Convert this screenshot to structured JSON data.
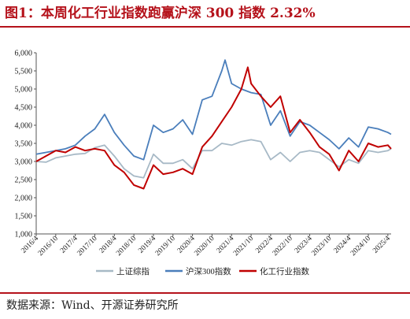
{
  "title": "图1：本周化工行业指数跑赢沪深 300 指数 2.32%",
  "source": "数据来源：Wind、开源证券研究所",
  "colors": {
    "accent": "#b5121b"
  },
  "chart_data": {
    "type": "line",
    "ylim": [
      1000,
      6000
    ],
    "yticks": [
      "1,000",
      "1,500",
      "2,000",
      "2,500",
      "3,000",
      "3,500",
      "4,000",
      "4,500",
      "5,000",
      "5,500",
      "6,000"
    ],
    "xlim": [
      "2016-04",
      "2025-05"
    ],
    "xticks": [
      "2016/4",
      "2016/10",
      "2017/4",
      "2017/10",
      "2018/4",
      "2018/10",
      "2019/4",
      "2019/10",
      "2020/4",
      "2020/10",
      "2021/4",
      "2021/10",
      "2022/4",
      "2022/10",
      "2023/4",
      "2023/10",
      "2024/4",
      "2024/10",
      "2025/4"
    ],
    "grid": false,
    "legend_position": "bottom",
    "series": [
      {
        "name": "上证综指",
        "color": "#a7b9c6",
        "x": [
          "2016-04",
          "2016-07",
          "2016-10",
          "2017-01",
          "2017-04",
          "2017-07",
          "2017-10",
          "2018-01",
          "2018-04",
          "2018-07",
          "2018-10",
          "2019-01",
          "2019-04",
          "2019-07",
          "2019-10",
          "2020-01",
          "2020-04",
          "2020-07",
          "2020-10",
          "2021-01",
          "2021-04",
          "2021-07",
          "2021-10",
          "2022-01",
          "2022-04",
          "2022-07",
          "2022-10",
          "2023-01",
          "2023-04",
          "2023-07",
          "2023-10",
          "2024-01",
          "2024-04",
          "2024-07",
          "2024-10",
          "2025-01",
          "2025-04",
          "2025-05"
        ],
        "values": [
          3000,
          2980,
          3100,
          3150,
          3200,
          3220,
          3380,
          3450,
          3150,
          2800,
          2600,
          2550,
          3200,
          2950,
          2950,
          3050,
          2800,
          3300,
          3300,
          3500,
          3450,
          3550,
          3600,
          3550,
          3050,
          3250,
          3000,
          3250,
          3300,
          3250,
          3050,
          2850,
          3050,
          2950,
          3300,
          3250,
          3300,
          3350
        ]
      },
      {
        "name": "沪深300指数",
        "color": "#4a7ebb",
        "x": [
          "2016-04",
          "2016-07",
          "2016-10",
          "2017-01",
          "2017-04",
          "2017-07",
          "2017-10",
          "2018-01",
          "2018-04",
          "2018-07",
          "2018-10",
          "2019-01",
          "2019-04",
          "2019-07",
          "2019-10",
          "2020-01",
          "2020-04",
          "2020-07",
          "2020-10",
          "2021-01",
          "2021-02",
          "2021-04",
          "2021-07",
          "2021-10",
          "2022-01",
          "2022-04",
          "2022-07",
          "2022-10",
          "2023-01",
          "2023-04",
          "2023-07",
          "2023-10",
          "2024-01",
          "2024-04",
          "2024-07",
          "2024-10",
          "2025-01",
          "2025-04",
          "2025-05"
        ],
        "values": [
          3200,
          3250,
          3300,
          3350,
          3450,
          3700,
          3900,
          4300,
          3800,
          3450,
          3150,
          3050,
          4000,
          3800,
          3900,
          4150,
          3750,
          4700,
          4800,
          5500,
          5800,
          5150,
          5000,
          4900,
          4850,
          4000,
          4400,
          3700,
          4100,
          4000,
          3800,
          3600,
          3350,
          3650,
          3400,
          3950,
          3900,
          3800,
          3750
        ]
      },
      {
        "name": "化工行业指数",
        "color": "#c00000",
        "x": [
          "2016-04",
          "2016-07",
          "2016-10",
          "2017-01",
          "2017-04",
          "2017-07",
          "2017-10",
          "2018-01",
          "2018-04",
          "2018-07",
          "2018-10",
          "2019-01",
          "2019-04",
          "2019-07",
          "2019-10",
          "2020-01",
          "2020-04",
          "2020-07",
          "2020-10",
          "2021-01",
          "2021-04",
          "2021-07",
          "2021-09",
          "2021-10",
          "2022-01",
          "2022-04",
          "2022-07",
          "2022-10",
          "2023-01",
          "2023-04",
          "2023-07",
          "2023-10",
          "2024-01",
          "2024-04",
          "2024-07",
          "2024-10",
          "2025-01",
          "2025-04",
          "2025-05"
        ],
        "values": [
          3000,
          3150,
          3300,
          3250,
          3400,
          3300,
          3350,
          3300,
          2900,
          2700,
          2350,
          2250,
          2900,
          2650,
          2700,
          2800,
          2650,
          3400,
          3700,
          4100,
          4500,
          5000,
          5600,
          5150,
          4800,
          4500,
          4800,
          3800,
          4150,
          3800,
          3400,
          3200,
          2750,
          3300,
          3000,
          3500,
          3400,
          3450,
          3350
        ]
      }
    ]
  }
}
